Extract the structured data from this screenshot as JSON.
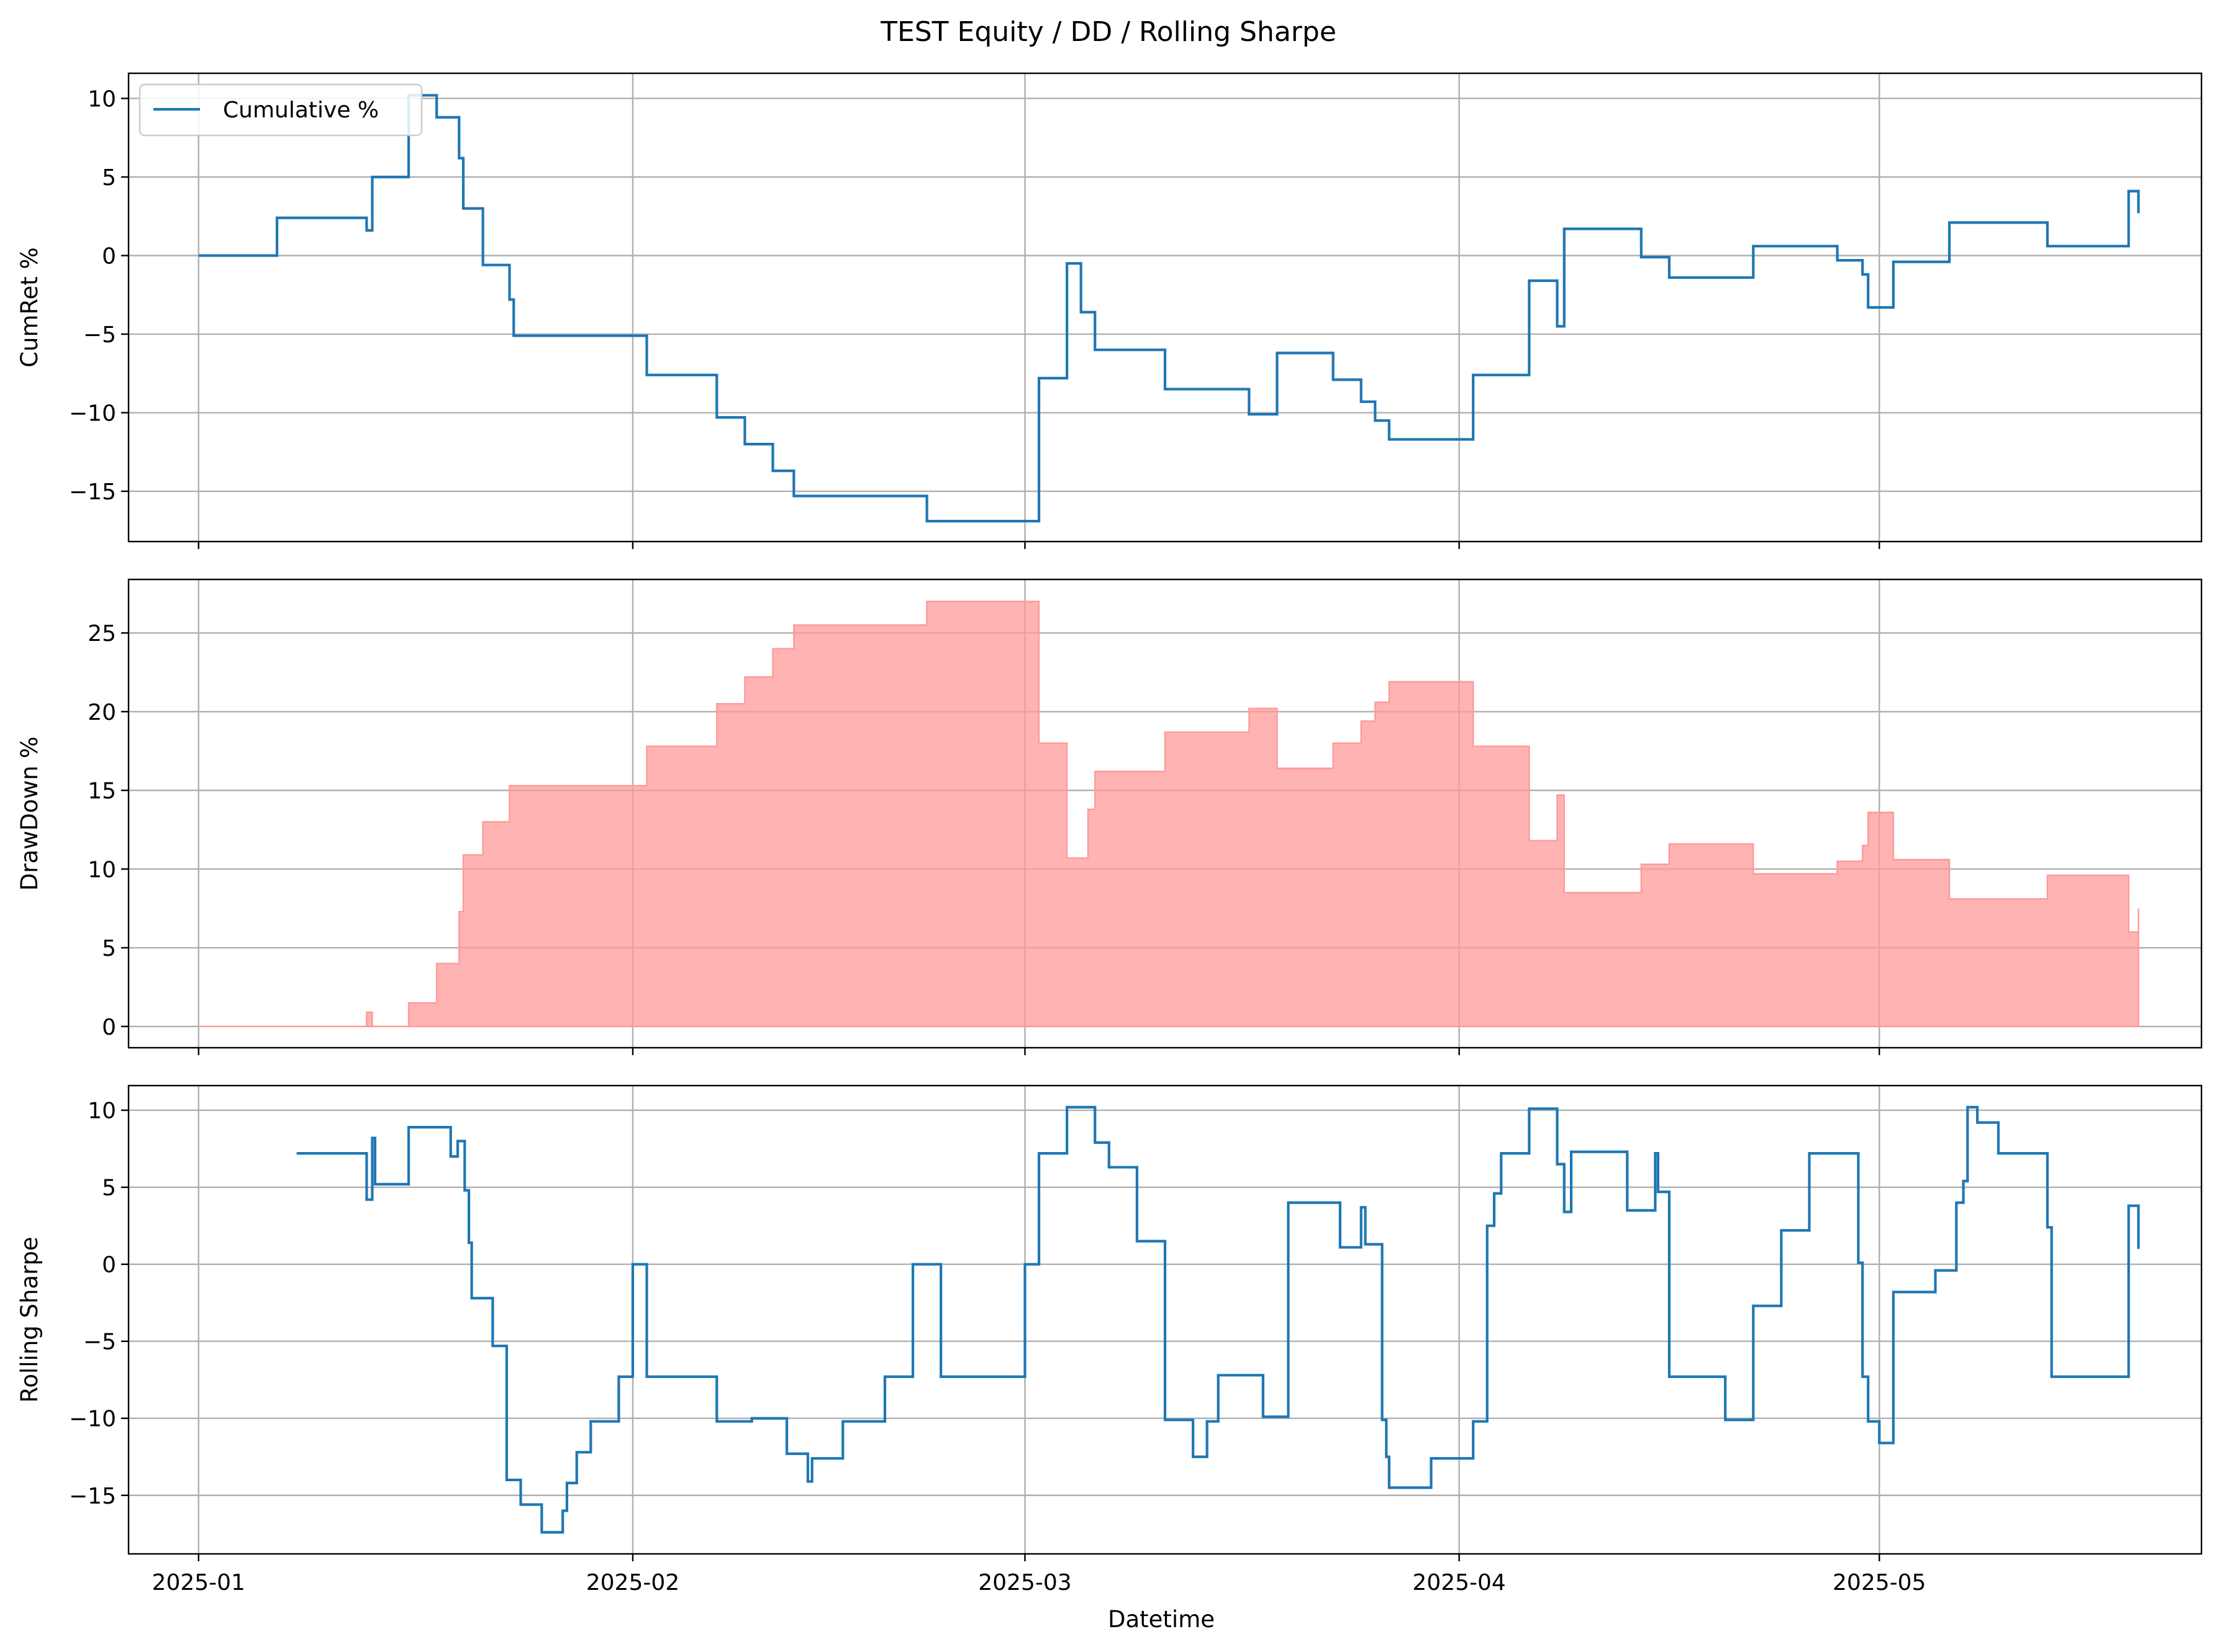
{
  "title": "TEST  Equity / DD / Rolling Sharpe",
  "xlabel": "Datetime",
  "colors": {
    "line": "#1f77b4",
    "fill": "#ff9999",
    "grid": "#b0b0b0"
  },
  "x_ticks": [
    {
      "date": "2025-01-01",
      "label": "2025-01"
    },
    {
      "date": "2025-02-01",
      "label": "2025-02"
    },
    {
      "date": "2025-03-01",
      "label": "2025-03"
    },
    {
      "date": "2025-04-01",
      "label": "2025-04"
    },
    {
      "date": "2025-05-01",
      "label": "2025-05"
    }
  ],
  "chart_data": [
    {
      "type": "line",
      "step": true,
      "ylabel": "CumRet %",
      "ylim": [
        -18.2,
        11.6
      ],
      "y_ticks": [
        10,
        5,
        0,
        -5,
        -10,
        -15
      ],
      "y_tick_labels": [
        "10",
        "5",
        "0",
        "−5",
        "−10",
        "−15"
      ],
      "grid": true,
      "legend": {
        "position": "top-left",
        "entries": [
          "Cumulative %"
        ]
      },
      "series": [
        {
          "name": "Cumulative %",
          "x": [
            "2025-01-01",
            "2025-01-06.6",
            "2025-01-13",
            "2025-01-13.4",
            "2025-01-14",
            "2025-01-16",
            "2025-01-18",
            "2025-01-19.6",
            "2025-01-19.9",
            "2025-01-20.2",
            "2025-01-21.3",
            "2025-01-23.2",
            "2025-01-23.5",
            "2025-02-02",
            "2025-02-07",
            "2025-02-09",
            "2025-02-11",
            "2025-02-12.5",
            "2025-02-14",
            "2025-02-22",
            "2025-02-24",
            "2025-03-02",
            "2025-03-04",
            "2025-03-05",
            "2025-03-06",
            "2025-03-11",
            "2025-03-17",
            "2025-03-19",
            "2025-03-23",
            "2025-03-25",
            "2025-03-26",
            "2025-03-27",
            "2025-04-02",
            "2025-04-06",
            "2025-04-08",
            "2025-04-08.5",
            "2025-04-14",
            "2025-04-16",
            "2025-04-22",
            "2025-04-28",
            "2025-04-29.8",
            "2025-04-30.2",
            "2025-05-02",
            "2025-05-06",
            "2025-05-13",
            "2025-05-18.8",
            "2025-05-19.5"
          ],
          "y": [
            0,
            2.4,
            1.6,
            5,
            5,
            10.2,
            8.8,
            6.2,
            3,
            3,
            -0.6,
            -2.8,
            -5.1,
            -7.6,
            -10.3,
            -12,
            -13.7,
            -15.3,
            -15.3,
            -16.9,
            -16.9,
            -7.8,
            -0.5,
            -3.6,
            -6,
            -8.5,
            -10.1,
            -6.2,
            -7.9,
            -9.3,
            -10.5,
            -11.7,
            -7.6,
            -1.6,
            -4.5,
            1.7,
            -0.1,
            -1.4,
            0.6,
            -0.3,
            -1.2,
            -3.3,
            -0.4,
            2.1,
            0.6,
            4.1,
            2.7
          ]
        }
      ]
    },
    {
      "type": "area",
      "step": true,
      "ylabel": "DrawDown %",
      "ylim": [
        -1.35,
        28.4
      ],
      "y_ticks": [
        0,
        5,
        10,
        15,
        20,
        25
      ],
      "y_tick_labels": [
        "0",
        "5",
        "10",
        "15",
        "20",
        "25"
      ],
      "grid": true,
      "series": [
        {
          "name": "",
          "x": [
            "2025-01-01",
            "2025-01-13",
            "2025-01-13.4",
            "2025-01-16",
            "2025-01-18",
            "2025-01-19.6",
            "2025-01-19.9",
            "2025-01-20.2",
            "2025-01-21.3",
            "2025-01-23.2",
            "2025-01-23.5",
            "2025-02-02",
            "2025-02-07",
            "2025-02-09",
            "2025-02-11",
            "2025-02-12.5",
            "2025-02-22",
            "2025-03-02",
            "2025-03-04",
            "2025-03-05",
            "2025-03-05.5",
            "2025-03-06",
            "2025-03-11",
            "2025-03-17",
            "2025-03-19",
            "2025-03-23",
            "2025-03-25",
            "2025-03-26",
            "2025-03-27",
            "2025-04-02",
            "2025-04-06",
            "2025-04-08",
            "2025-04-08.5",
            "2025-04-14",
            "2025-04-16",
            "2025-04-22",
            "2025-04-28",
            "2025-04-29.8",
            "2025-04-30.2",
            "2025-05-02",
            "2025-05-06",
            "2025-05-13",
            "2025-05-18.8",
            "2025-05-19.5"
          ],
          "y": [
            0,
            0.9,
            0,
            1.5,
            4,
            7.3,
            10.9,
            10.9,
            13,
            15.3,
            15.3,
            17.8,
            20.5,
            22.2,
            24,
            25.5,
            27,
            18,
            10.7,
            10.7,
            13.8,
            16.2,
            18.7,
            20.2,
            16.4,
            18,
            19.4,
            20.6,
            21.9,
            17.8,
            11.8,
            14.7,
            8.5,
            10.3,
            11.6,
            9.7,
            10.5,
            11.5,
            13.6,
            10.6,
            8.1,
            9.6,
            6,
            7.5
          ]
        }
      ]
    },
    {
      "type": "line",
      "step": true,
      "ylabel": "Rolling Sharpe",
      "ylim": [
        -18.8,
        11.6
      ],
      "y_ticks": [
        10,
        5,
        0,
        -5,
        -10,
        -15
      ],
      "y_tick_labels": [
        "10",
        "5",
        "0",
        "−5",
        "−10",
        "−15"
      ],
      "grid": true,
      "series": [
        {
          "name": "",
          "x": [
            "2025-01-08",
            "2025-01-13",
            "2025-01-13.4",
            "2025-01-13.6",
            "2025-01-16",
            "2025-01-19",
            "2025-01-19.5",
            "2025-01-20",
            "2025-01-20.3",
            "2025-01-20.5",
            "2025-01-22",
            "2025-01-23",
            "2025-01-24",
            "2025-01-25.5",
            "2025-01-27",
            "2025-01-27.3",
            "2025-01-28",
            "2025-01-29",
            "2025-01-31",
            "2025-02-01",
            "2025-02-02",
            "2025-02-07",
            "2025-02-09.5",
            "2025-02-12",
            "2025-02-13.5",
            "2025-02-13.8",
            "2025-02-16",
            "2025-02-19",
            "2025-02-21",
            "2025-02-23",
            "2025-03-01",
            "2025-03-02",
            "2025-03-04",
            "2025-03-06",
            "2025-03-07",
            "2025-03-09",
            "2025-03-11",
            "2025-03-13",
            "2025-03-14",
            "2025-03-14.8",
            "2025-03-18",
            "2025-03-19.8",
            "2025-03-23.5",
            "2025-03-25",
            "2025-03-25.3",
            "2025-03-26.5",
            "2025-03-26.8",
            "2025-03-27",
            "2025-03-30",
            "2025-04-02",
            "2025-04-03",
            "2025-04-03.5",
            "2025-04-04",
            "2025-04-06",
            "2025-04-08",
            "2025-04-08.5",
            "2025-04-09",
            "2025-04-13",
            "2025-04-15",
            "2025-04-15.2",
            "2025-04-16",
            "2025-04-20",
            "2025-04-22",
            "2025-04-24",
            "2025-04-26",
            "2025-04-29.5",
            "2025-04-29.8",
            "2025-04-30.2",
            "2025-05-01",
            "2025-05-02",
            "2025-05-05",
            "2025-05-06.5",
            "2025-05-07",
            "2025-05-07.3",
            "2025-05-08",
            "2025-05-09.5",
            "2025-05-13",
            "2025-05-13.3",
            "2025-05-18.8",
            "2025-05-19.5"
          ],
          "y": [
            7.2,
            4.2,
            8.2,
            5.2,
            8.9,
            7,
            8,
            4.8,
            1.4,
            -2.2,
            -5.3,
            -14,
            -15.6,
            -17.4,
            -16,
            -14.2,
            -12.2,
            -10.2,
            -7.3,
            0,
            -7.3,
            -10.2,
            -10,
            -12.3,
            -14.1,
            -12.6,
            -10.2,
            -7.3,
            0,
            -7.3,
            0,
            7.2,
            10.2,
            7.9,
            6.3,
            1.5,
            -10.1,
            -12.5,
            -10.2,
            -7.2,
            -9.9,
            4,
            1.1,
            3.7,
            1.3,
            -10.1,
            -12.5,
            -14.5,
            -12.6,
            -10.2,
            2.5,
            4.6,
            7.2,
            10.1,
            6.5,
            3.4,
            7.3,
            3.5,
            7.2,
            4.7,
            -7.3,
            -10.1,
            -2.7,
            2.2,
            7.2,
            0.1,
            -7.3,
            -10.2,
            -11.6,
            -1.8,
            -0.4,
            4,
            5.4,
            10.2,
            9.2,
            7.2,
            2.4,
            -7.3,
            3.8,
            1
          ]
        }
      ]
    }
  ]
}
